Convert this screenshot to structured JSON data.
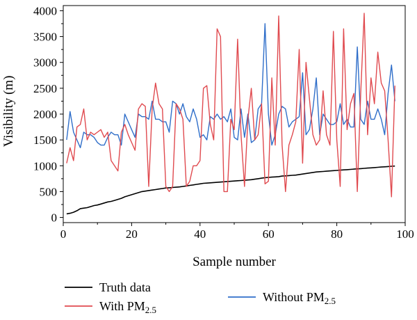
{
  "chart_data": {
    "type": "line",
    "title": "",
    "xlabel": "Sample number",
    "ylabel": "Visibility (m)",
    "xlim": [
      0,
      100
    ],
    "ylim": [
      -100,
      4100
    ],
    "xticks": [
      0,
      20,
      40,
      60,
      80,
      100
    ],
    "yticks": [
      0,
      500,
      1000,
      1500,
      2000,
      2500,
      3000,
      3500,
      4000
    ],
    "grid": false,
    "legend_position": "bottom",
    "series": [
      {
        "name": "Truth data",
        "subscript": "",
        "color": "#000000",
        "x": [
          1,
          2,
          3,
          4,
          5,
          6,
          7,
          8,
          9,
          10,
          11,
          12,
          13,
          14,
          15,
          16,
          17,
          18,
          19,
          20,
          21,
          22,
          23,
          24,
          25,
          26,
          27,
          28,
          29,
          30,
          31,
          32,
          33,
          34,
          35,
          36,
          37,
          38,
          39,
          40,
          41,
          42,
          43,
          44,
          45,
          46,
          47,
          48,
          49,
          50,
          51,
          52,
          53,
          54,
          55,
          56,
          57,
          58,
          59,
          60,
          61,
          62,
          63,
          64,
          65,
          66,
          67,
          68,
          69,
          70,
          71,
          72,
          73,
          74,
          75,
          76,
          77,
          78,
          79,
          80,
          81,
          82,
          83,
          84,
          85,
          86,
          87,
          88,
          89,
          90,
          91,
          92,
          93,
          94,
          95,
          96,
          97
        ],
        "y": [
          70,
          80,
          100,
          130,
          170,
          180,
          190,
          210,
          230,
          240,
          260,
          280,
          300,
          310,
          330,
          350,
          370,
          400,
          420,
          440,
          460,
          480,
          500,
          510,
          520,
          530,
          540,
          550,
          560,
          570,
          575,
          580,
          585,
          590,
          600,
          610,
          620,
          630,
          640,
          650,
          660,
          665,
          670,
          675,
          680,
          685,
          690,
          695,
          700,
          705,
          710,
          715,
          720,
          725,
          730,
          740,
          750,
          760,
          770,
          775,
          780,
          785,
          790,
          800,
          805,
          810,
          815,
          820,
          830,
          840,
          850,
          860,
          870,
          880,
          885,
          890,
          895,
          900,
          905,
          910,
          915,
          920,
          925,
          930,
          935,
          940,
          945,
          950,
          955,
          960,
          965,
          970,
          975,
          980,
          985,
          990,
          995
        ]
      },
      {
        "name": "With PM",
        "subscript": "2.5",
        "color": "#e04a4f",
        "x": [
          1,
          2,
          3,
          4,
          5,
          6,
          7,
          8,
          9,
          10,
          11,
          12,
          13,
          14,
          15,
          16,
          17,
          18,
          19,
          20,
          21,
          22,
          23,
          24,
          25,
          26,
          27,
          28,
          29,
          30,
          31,
          32,
          33,
          34,
          35,
          36,
          37,
          38,
          39,
          40,
          41,
          42,
          43,
          44,
          45,
          46,
          47,
          48,
          49,
          50,
          51,
          52,
          53,
          54,
          55,
          56,
          57,
          58,
          59,
          60,
          61,
          62,
          63,
          64,
          65,
          66,
          67,
          68,
          69,
          70,
          71,
          72,
          73,
          74,
          75,
          76,
          77,
          78,
          79,
          80,
          81,
          82,
          83,
          84,
          85,
          86,
          87,
          88,
          89,
          90,
          91,
          92,
          93,
          94,
          95,
          96,
          97
        ],
        "y": [
          1050,
          1350,
          1100,
          1750,
          1800,
          2100,
          1500,
          1650,
          1600,
          1650,
          1700,
          1550,
          1650,
          1100,
          1000,
          900,
          1650,
          1800,
          1600,
          1450,
          1300,
          2100,
          2200,
          2150,
          600,
          2100,
          2600,
          2200,
          2100,
          600,
          500,
          600,
          2200,
          2100,
          1900,
          600,
          700,
          1000,
          1000,
          1100,
          2500,
          2550,
          1800,
          1500,
          3650,
          3500,
          500,
          500,
          1900,
          1700,
          3450,
          1600,
          600,
          1900,
          2500,
          1500,
          1600,
          2200,
          650,
          700,
          2700,
          1400,
          3900,
          1400,
          500,
          1400,
          1600,
          1850,
          3250,
          1050,
          3000,
          2300,
          1600,
          1400,
          1500,
          2450,
          1600,
          1400,
          3600,
          1500,
          600,
          3650,
          1700,
          2200,
          2400,
          500,
          2400,
          3950,
          1600,
          2700,
          2200,
          3200,
          2600,
          2450,
          1500,
          400,
          2550
        ],
        "y_note": ""
      },
      {
        "name": "Without PM",
        "subscript": "2.5",
        "color": "#2f6ec9",
        "x": [
          1,
          2,
          3,
          4,
          5,
          6,
          7,
          8,
          9,
          10,
          11,
          12,
          13,
          14,
          15,
          16,
          17,
          18,
          19,
          20,
          21,
          22,
          23,
          24,
          25,
          26,
          27,
          28,
          29,
          30,
          31,
          32,
          33,
          34,
          35,
          36,
          37,
          38,
          39,
          40,
          41,
          42,
          43,
          44,
          45,
          46,
          47,
          48,
          49,
          50,
          51,
          52,
          53,
          54,
          55,
          56,
          57,
          58,
          59,
          60,
          61,
          62,
          63,
          64,
          65,
          66,
          67,
          68,
          69,
          70,
          71,
          72,
          73,
          74,
          75,
          76,
          77,
          78,
          79,
          80,
          81,
          82,
          83,
          84,
          85,
          86,
          87,
          88,
          89,
          90,
          91,
          92,
          93,
          94,
          95,
          96,
          97
        ],
        "y": [
          1500,
          2050,
          1650,
          1500,
          1350,
          1650,
          1600,
          1600,
          1550,
          1450,
          1400,
          1400,
          1550,
          1650,
          1600,
          1600,
          1400,
          2000,
          1850,
          1700,
          1550,
          2000,
          1950,
          1950,
          1900,
          2250,
          1900,
          1900,
          1850,
          1850,
          1650,
          2250,
          2200,
          2000,
          2200,
          1950,
          1850,
          2100,
          1900,
          1550,
          1600,
          1500,
          1950,
          1900,
          2000,
          1900,
          1950,
          1850,
          2100,
          1550,
          1500,
          2100,
          1550,
          2000,
          1450,
          1500,
          2100,
          2200,
          3750,
          2000,
          1400,
          1600,
          2000,
          2150,
          2100,
          1750,
          1850,
          1900,
          1950,
          2800,
          1600,
          1700,
          2100,
          2700,
          1600,
          2000,
          1900,
          1800,
          1800,
          1850,
          2200,
          1800,
          1900,
          1750,
          1750,
          3300,
          1900,
          1800,
          2250,
          1900,
          1900,
          2100,
          1900,
          1600,
          2400,
          2950,
          2250
        ]
      }
    ]
  }
}
